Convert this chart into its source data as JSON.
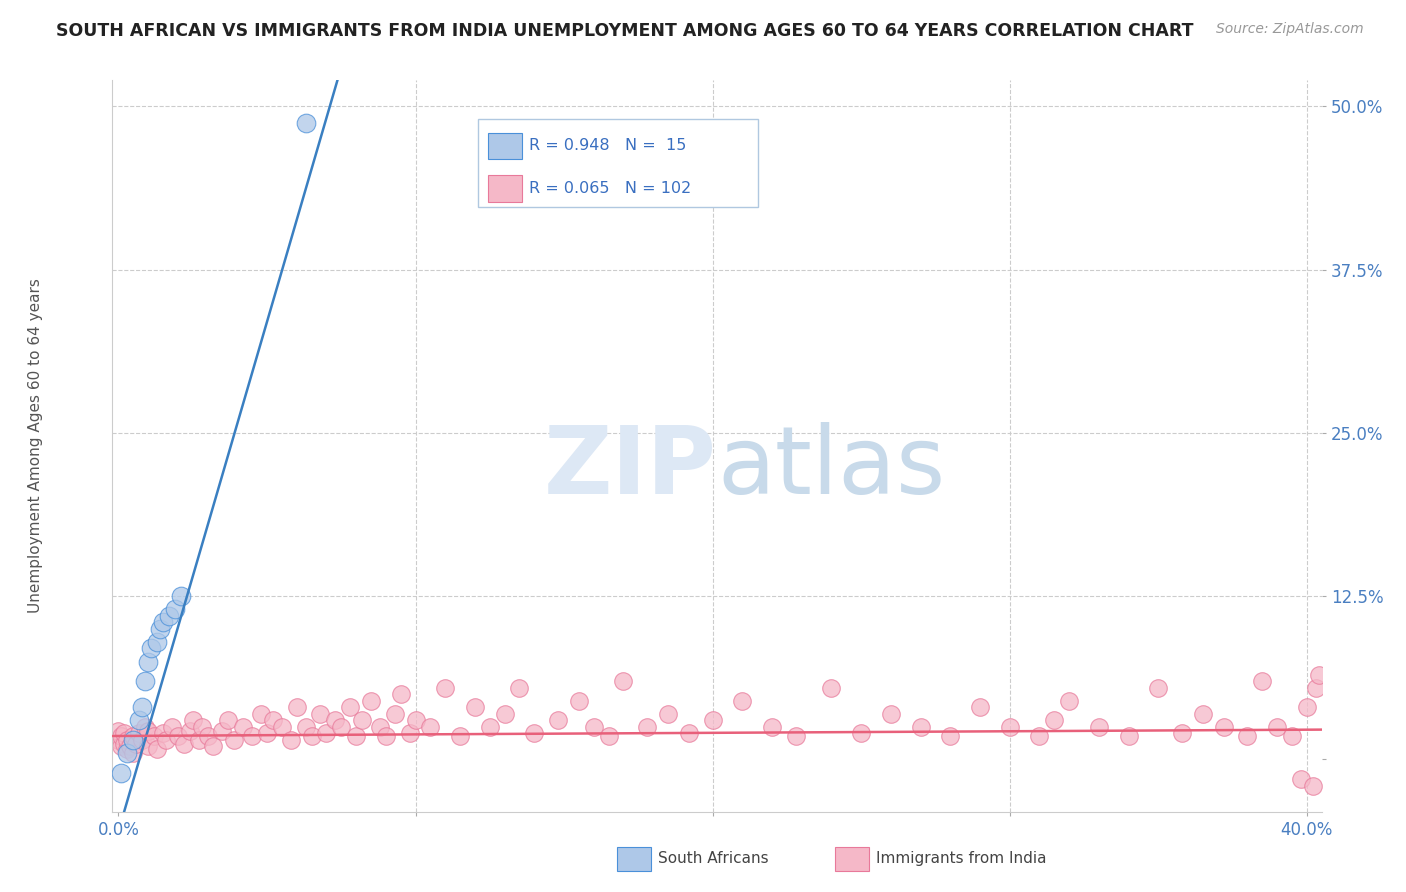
{
  "title": "SOUTH AFRICAN VS IMMIGRANTS FROM INDIA UNEMPLOYMENT AMONG AGES 60 TO 64 YEARS CORRELATION CHART",
  "source": "Source: ZipAtlas.com",
  "ylabel": "Unemployment Among Ages 60 to 64 years",
  "xlim": [
    -0.002,
    0.405
  ],
  "ylim": [
    -0.04,
    0.52
  ],
  "xticks": [
    0.0,
    0.1,
    0.2,
    0.3,
    0.4
  ],
  "xticklabels": [
    "0.0%",
    "",
    "",
    "",
    "40.0%"
  ],
  "yticks": [
    0.0,
    0.125,
    0.25,
    0.375,
    0.5
  ],
  "yticklabels": [
    "",
    "12.5%",
    "25.0%",
    "37.5%",
    "50.0%"
  ],
  "blue_R": 0.948,
  "blue_N": 15,
  "pink_R": 0.065,
  "pink_N": 102,
  "blue_fill_color": "#aec8e8",
  "blue_edge_color": "#4a90d9",
  "pink_fill_color": "#f5b8c8",
  "pink_edge_color": "#e8799a",
  "blue_line_color": "#3a7fc1",
  "pink_line_color": "#e8607a",
  "background_color": "#ffffff",
  "watermark_zip": "ZIP",
  "watermark_atlas": "atlas",
  "legend_blue_label": "R = 0.948   N =  15",
  "legend_pink_label": "R = 0.065   N = 102",
  "bottom_label_blue": "South Africans",
  "bottom_label_pink": "Immigrants from India",
  "blue_x": [
    0.001,
    0.003,
    0.005,
    0.007,
    0.008,
    0.009,
    0.01,
    0.011,
    0.013,
    0.014,
    0.015,
    0.017,
    0.019,
    0.021,
    0.063
  ],
  "blue_y": [
    -0.01,
    0.005,
    0.015,
    0.03,
    0.04,
    0.06,
    0.075,
    0.085,
    0.09,
    0.1,
    0.105,
    0.11,
    0.115,
    0.125,
    0.487
  ],
  "blue_slope": 7.8,
  "blue_intercept": -0.055,
  "pink_slope": 0.012,
  "pink_intercept": 0.018,
  "pink_x": [
    0.0,
    0.0,
    0.001,
    0.001,
    0.002,
    0.002,
    0.003,
    0.003,
    0.004,
    0.005,
    0.005,
    0.006,
    0.007,
    0.008,
    0.009,
    0.01,
    0.01,
    0.012,
    0.013,
    0.015,
    0.016,
    0.018,
    0.02,
    0.022,
    0.024,
    0.025,
    0.027,
    0.028,
    0.03,
    0.032,
    0.035,
    0.037,
    0.039,
    0.042,
    0.045,
    0.048,
    0.05,
    0.052,
    0.055,
    0.058,
    0.06,
    0.063,
    0.065,
    0.068,
    0.07,
    0.073,
    0.075,
    0.078,
    0.08,
    0.082,
    0.085,
    0.088,
    0.09,
    0.093,
    0.095,
    0.098,
    0.1,
    0.105,
    0.11,
    0.115,
    0.12,
    0.125,
    0.13,
    0.135,
    0.14,
    0.148,
    0.155,
    0.16,
    0.165,
    0.17,
    0.178,
    0.185,
    0.192,
    0.2,
    0.21,
    0.22,
    0.228,
    0.24,
    0.25,
    0.26,
    0.27,
    0.28,
    0.29,
    0.3,
    0.31,
    0.315,
    0.32,
    0.33,
    0.34,
    0.35,
    0.358,
    0.365,
    0.372,
    0.38,
    0.385,
    0.39,
    0.395,
    0.398,
    0.4,
    0.402,
    0.403,
    0.404
  ],
  "pink_y": [
    0.015,
    0.022,
    0.01,
    0.018,
    0.012,
    0.02,
    0.008,
    0.015,
    0.01,
    0.005,
    0.018,
    0.012,
    0.02,
    0.015,
    0.025,
    0.01,
    0.022,
    0.018,
    0.008,
    0.02,
    0.015,
    0.025,
    0.018,
    0.012,
    0.022,
    0.03,
    0.015,
    0.025,
    0.018,
    0.01,
    0.022,
    0.03,
    0.015,
    0.025,
    0.018,
    0.035,
    0.02,
    0.03,
    0.025,
    0.015,
    0.04,
    0.025,
    0.018,
    0.035,
    0.02,
    0.03,
    0.025,
    0.04,
    0.018,
    0.03,
    0.045,
    0.025,
    0.018,
    0.035,
    0.05,
    0.02,
    0.03,
    0.025,
    0.055,
    0.018,
    0.04,
    0.025,
    0.035,
    0.055,
    0.02,
    0.03,
    0.045,
    0.025,
    0.018,
    0.06,
    0.025,
    0.035,
    0.02,
    0.03,
    0.045,
    0.025,
    0.018,
    0.055,
    0.02,
    0.035,
    0.025,
    0.018,
    0.04,
    0.025,
    0.018,
    0.03,
    0.045,
    0.025,
    0.018,
    0.055,
    0.02,
    0.035,
    0.025,
    0.018,
    0.06,
    0.025,
    0.018,
    -0.015,
    0.04,
    -0.02,
    0.055,
    0.065
  ]
}
